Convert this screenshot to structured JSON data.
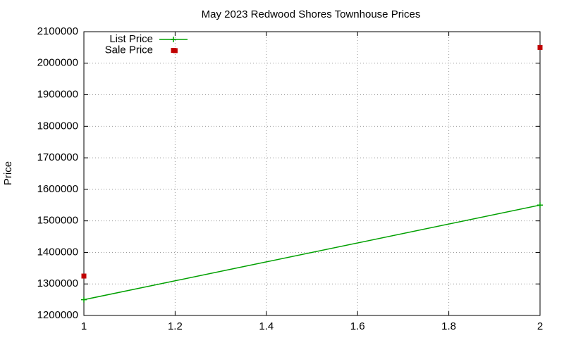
{
  "chart_data": {
    "type": "line",
    "title": "May 2023 Redwood Shores Townhouse Prices",
    "y_label": "Price",
    "xlim": [
      1,
      2
    ],
    "xticks": [
      1,
      1.2,
      1.4,
      1.6,
      1.8,
      2
    ],
    "ylim": [
      1200000,
      2100000
    ],
    "yticks": [
      1200000,
      1300000,
      1400000,
      1500000,
      1600000,
      1700000,
      1800000,
      1900000,
      2000000,
      2100000
    ],
    "grid": true,
    "legend": "top-left",
    "series": [
      {
        "name": "List Price",
        "color": "#00a000",
        "style": "linespoints",
        "x": [
          1,
          2
        ],
        "values": [
          1250000,
          1550000
        ]
      },
      {
        "name": "Sale Price",
        "color": "#c00000",
        "style": "points",
        "x": [
          1,
          1.2,
          2
        ],
        "values": [
          1325000,
          2040000,
          2050000
        ]
      }
    ]
  }
}
